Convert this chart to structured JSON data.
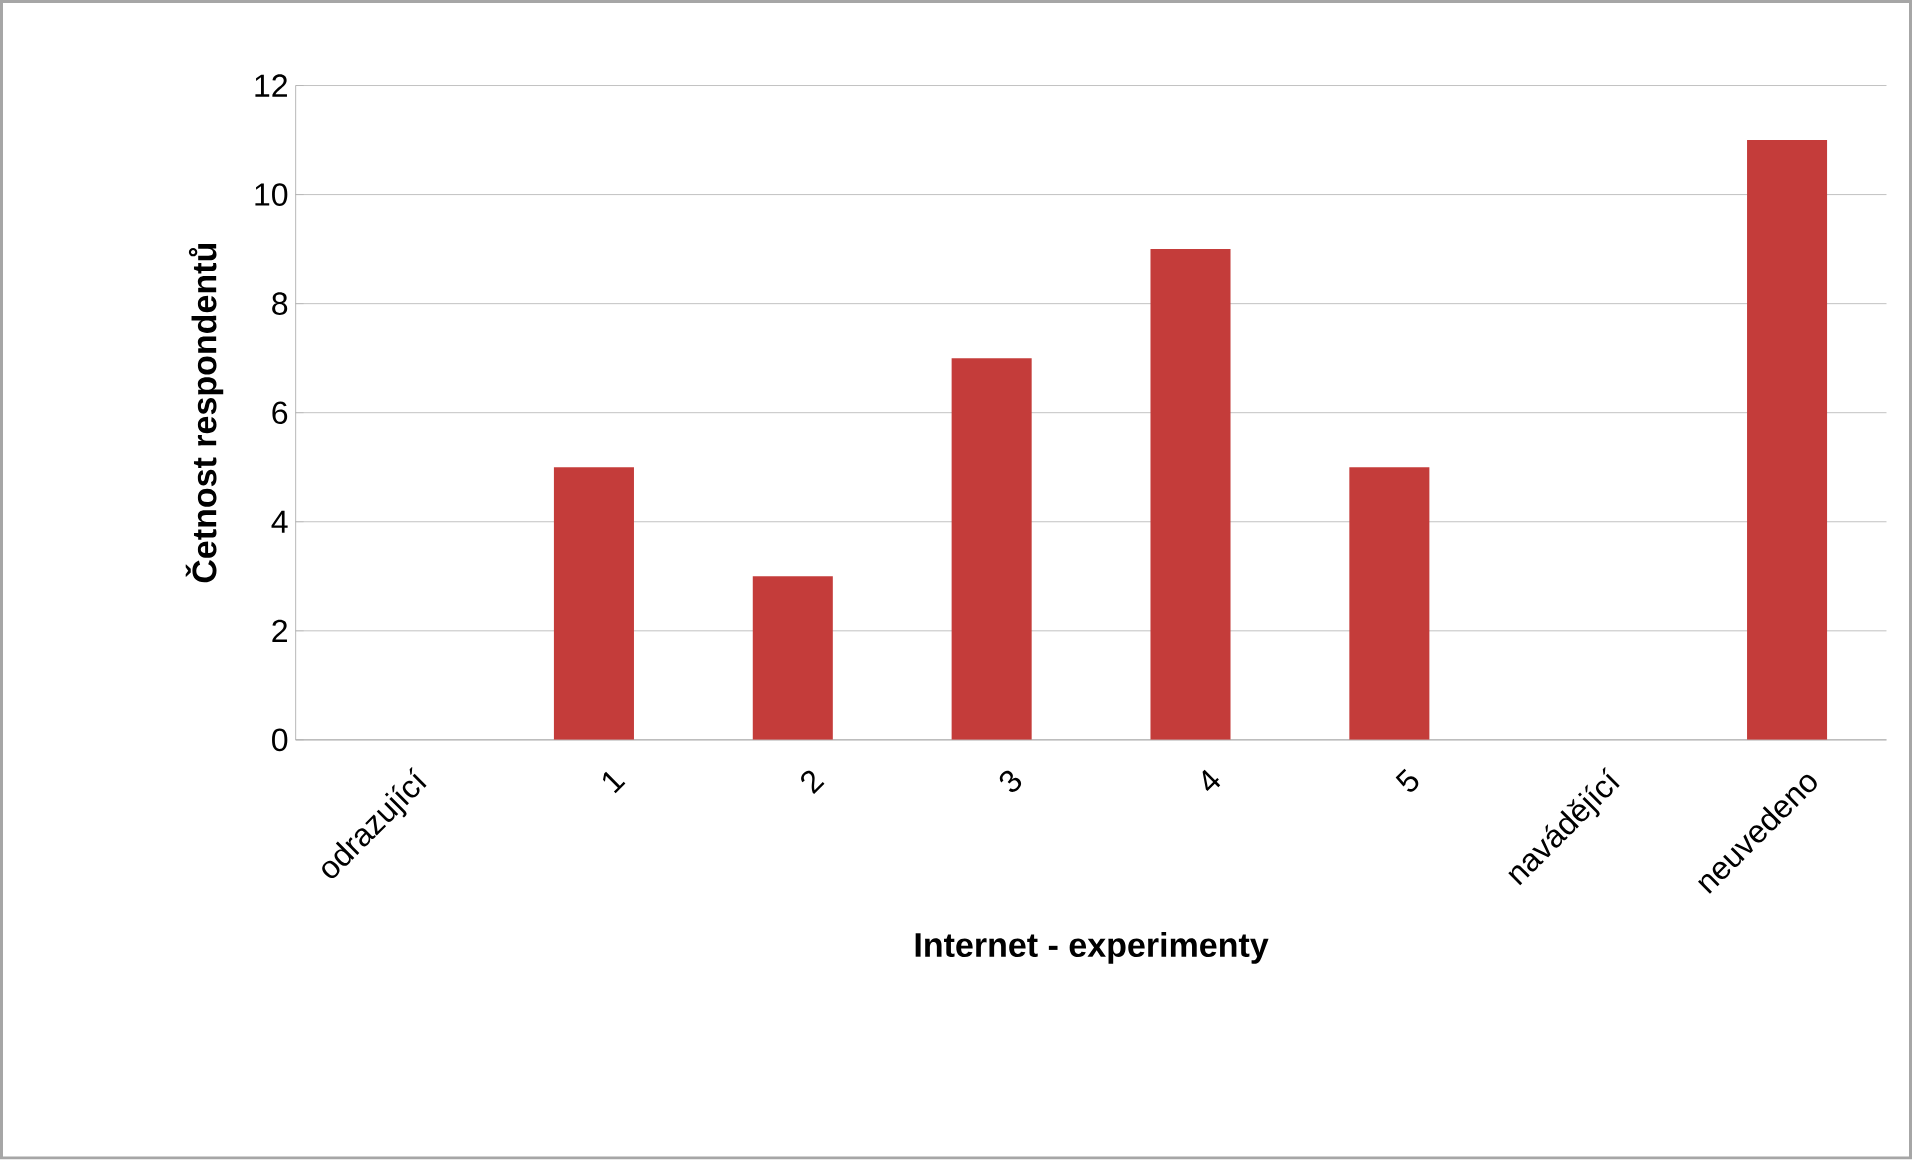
{
  "chart_data": {
    "type": "bar",
    "xlabel": "Internet - experimenty",
    "ylabel": "Četnost respondentů",
    "categories": [
      "odrazující",
      "1",
      "2",
      "3",
      "4",
      "5",
      "navádějící",
      "neuvedeno"
    ],
    "values": [
      0,
      5,
      3,
      7,
      9,
      5,
      0,
      11
    ],
    "color": "#c43c3a",
    "ylim": [
      0,
      12
    ],
    "yticks": [
      0,
      2,
      4,
      6,
      8,
      10,
      12
    ],
    "grid": "y"
  }
}
